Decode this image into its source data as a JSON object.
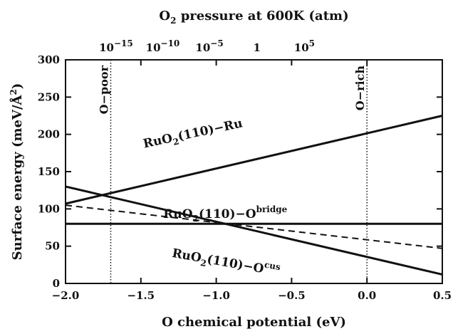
{
  "chart_data": {
    "type": "line",
    "xlabel": "O chemical potential (eV)",
    "ylabel": "Surface energy (meV/Å²)",
    "ylabel_parts": {
      "pre": "Surface energy  (meV/",
      "unit": "Å",
      "exp": "2",
      "post": ")"
    },
    "xlim": [
      -2.0,
      0.5
    ],
    "ylim": [
      0,
      300
    ],
    "x_ticks": [
      -2.0,
      -1.5,
      -1.0,
      -0.5,
      0.0,
      0.5
    ],
    "x_tick_labels": [
      "−2.0",
      "−1.5",
      "−1.0",
      "−0.5",
      "0.0",
      "0.5"
    ],
    "y_ticks": [
      0,
      50,
      100,
      150,
      200,
      250,
      300
    ],
    "y_tick_labels": [
      "0",
      "50",
      "100",
      "150",
      "200",
      "250",
      "300"
    ],
    "top_axis": {
      "title": "O₂ pressure at 600K (atm)",
      "title_parts": {
        "pre": "O",
        "sub": "2",
        "post": " pressure at 600K (atm)"
      },
      "ticks": [
        {
          "x": -1.665,
          "base": "10",
          "exp": "−15"
        },
        {
          "x": -1.355,
          "base": "10",
          "exp": "−10"
        },
        {
          "x": -1.045,
          "base": "10",
          "exp": "−5"
        },
        {
          "x": -0.73,
          "text": "1"
        },
        {
          "x": -0.415,
          "base": "10",
          "exp": "5"
        }
      ]
    },
    "vertical_markers": [
      {
        "x": -1.7,
        "label": "O−poor"
      },
      {
        "x": 0.0,
        "label": "O−rich"
      }
    ],
    "series": [
      {
        "x": [
          -2.0,
          0.5
        ],
        "y": [
          107,
          225
        ],
        "style": "solid"
      },
      {
        "x": [
          -2.0,
          0.5
        ],
        "y": [
          80,
          80
        ],
        "style": "solid"
      },
      {
        "x": [
          -2.0,
          0.5
        ],
        "y": [
          130,
          12
        ],
        "style": "solid"
      },
      {
        "x": [
          -2.0,
          0.5
        ],
        "y": [
          105,
          47
        ],
        "style": "dashed"
      }
    ],
    "labels": [
      {
        "label_parts": {
          "pre": "RuO",
          "sub": "2",
          "post": "(110)−Ru"
        },
        "label_at": [
          -1.15,
          196
        ]
      },
      {
        "label_parts": {
          "pre": "RuO",
          "sub": "2",
          "post": "(110)−O",
          "sup": "bridge"
        },
        "label_at": [
          -0.94,
          88
        ]
      },
      {
        "label_parts": {
          "pre": "RuO",
          "sub": "2",
          "post": "(110)−O",
          "sup": "cus"
        },
        "label_at": [
          -0.94,
          23
        ]
      }
    ],
    "grid": false
  }
}
